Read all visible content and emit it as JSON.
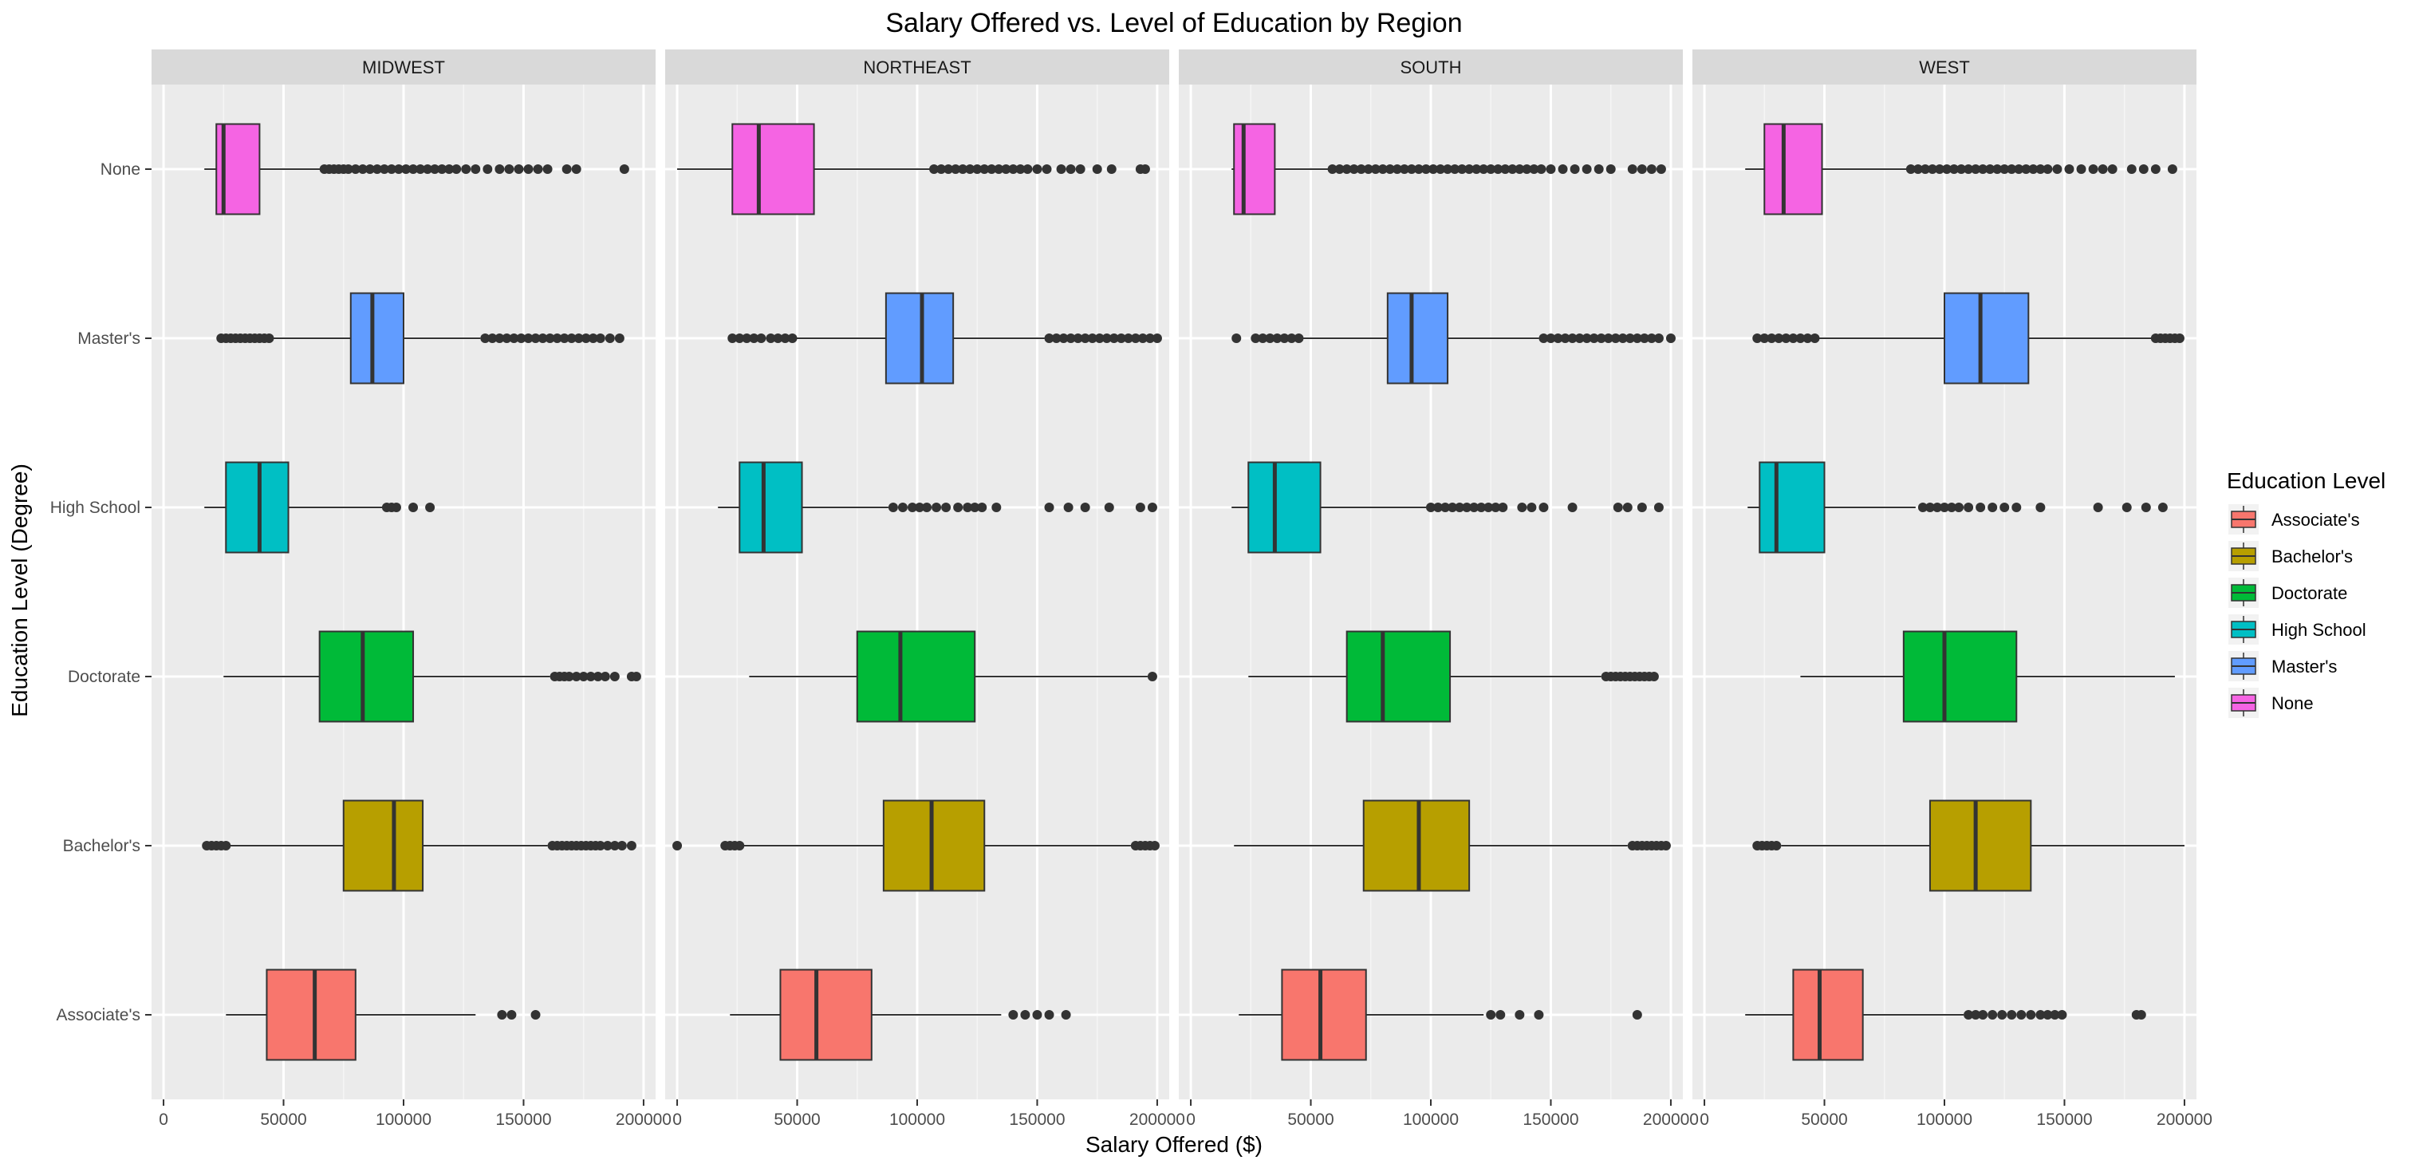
{
  "chart_data": {
    "type": "boxplot",
    "orientation": "horizontal",
    "title": "Salary Offered vs. Level of Education by Region",
    "xlabel": "Salary Offered ($)",
    "ylabel": "Education Level (Degree)",
    "xlim": [
      -5000,
      205000
    ],
    "x_ticks": [
      0,
      50000,
      100000,
      150000,
      200000
    ],
    "x_tick_labels": [
      "0",
      "50000",
      "100000",
      "150000",
      "200000"
    ],
    "categories": [
      "None",
      "Master's",
      "High School",
      "Doctorate",
      "Bachelor's",
      "Associate's"
    ],
    "legend": {
      "title": "Education Level",
      "position": "right",
      "entries": [
        "Associate's",
        "Bachelor's",
        "Doctorate",
        "High School",
        "Master's",
        "None"
      ]
    },
    "colors": {
      "Associate's": "#F8766D",
      "Bachelor's": "#B79F00",
      "Doctorate": "#00BA38",
      "High School": "#00BFC4",
      "Master's": "#619CFF",
      "None": "#F564E3"
    },
    "grid": true,
    "panels": [
      {
        "facet": "MIDWEST",
        "boxes": [
          {
            "category": "None",
            "whisker_low": 17000,
            "q1": 22000,
            "median": 25000,
            "q3": 40000,
            "whisker_high": 66000,
            "outliers": [
              67000,
              69000,
              71000,
              73000,
              75000,
              77000,
              80000,
              83000,
              86000,
              89000,
              92000,
              95000,
              98000,
              101000,
              104000,
              107000,
              110000,
              113000,
              116000,
              119000,
              122000,
              126000,
              130000,
              135000,
              140000,
              144000,
              148000,
              152000,
              156000,
              160000,
              168000,
              172000,
              192000
            ]
          },
          {
            "category": "Master's",
            "whisker_low": 25000,
            "q1": 78000,
            "median": 87000,
            "q3": 100000,
            "whisker_high": 132000,
            "outliers": [
              24000,
              26000,
              28000,
              30000,
              32000,
              34000,
              36000,
              38000,
              40000,
              42000,
              44000,
              134000,
              137000,
              140000,
              143000,
              146000,
              149000,
              152000,
              155000,
              158000,
              161000,
              164000,
              167000,
              170000,
              173000,
              176000,
              179000,
              182000,
              186000,
              190000
            ]
          },
          {
            "category": "High School",
            "whisker_low": 17000,
            "q1": 26000,
            "median": 40000,
            "q3": 52000,
            "whisker_high": 92000,
            "outliers": [
              93000,
              95000,
              97000,
              104000,
              111000
            ]
          },
          {
            "category": "Doctorate",
            "whisker_low": 25000,
            "q1": 65000,
            "median": 83000,
            "q3": 104000,
            "whisker_high": 161000,
            "outliers": [
              163000,
              165000,
              167000,
              169000,
              172000,
              175000,
              178000,
              181000,
              184000,
              188000,
              195000,
              197000
            ]
          },
          {
            "category": "Bachelor's",
            "whisker_low": 25000,
            "q1": 75000,
            "median": 96000,
            "q3": 108000,
            "whisker_high": 160000,
            "outliers": [
              18000,
              20000,
              22000,
              24000,
              26000,
              162000,
              164000,
              166000,
              168000,
              170000,
              172000,
              174000,
              176000,
              178000,
              180000,
              182000,
              185000,
              188000,
              191000,
              195000
            ]
          },
          {
            "category": "Associate's",
            "whisker_low": 26000,
            "q1": 43000,
            "median": 63000,
            "q3": 80000,
            "whisker_high": 130000,
            "outliers": [
              141000,
              145000,
              155000
            ]
          }
        ]
      },
      {
        "facet": "NORTHEAST",
        "boxes": [
          {
            "category": "None",
            "whisker_low": 0,
            "q1": 23000,
            "median": 34000,
            "q3": 57000,
            "whisker_high": 106000,
            "outliers": [
              107000,
              110000,
              113000,
              116000,
              119000,
              122000,
              125000,
              128000,
              131000,
              134000,
              137000,
              140000,
              143000,
              146000,
              150000,
              154000,
              160000,
              164000,
              168000,
              175000,
              181000,
              193000,
              195000
            ]
          },
          {
            "category": "Master's",
            "whisker_low": 37000,
            "q1": 87000,
            "median": 102000,
            "q3": 115000,
            "whisker_high": 153000,
            "outliers": [
              23000,
              26000,
              29000,
              32000,
              35000,
              39000,
              42000,
              45000,
              48000,
              155000,
              158000,
              161000,
              164000,
              167000,
              170000,
              173000,
              176000,
              179000,
              182000,
              185000,
              188000,
              191000,
              194000,
              197000,
              200000
            ]
          },
          {
            "category": "High School",
            "whisker_low": 17000,
            "q1": 26000,
            "median": 36000,
            "q3": 52000,
            "whisker_high": 88000,
            "outliers": [
              90000,
              94000,
              98000,
              101000,
              104000,
              108000,
              112000,
              117000,
              121000,
              124000,
              127000,
              133000,
              155000,
              163000,
              170000,
              180000,
              193000,
              198000
            ]
          },
          {
            "category": "Doctorate",
            "whisker_low": 30000,
            "q1": 75000,
            "median": 93000,
            "q3": 124000,
            "whisker_high": 196000,
            "outliers": [
              198000
            ]
          },
          {
            "category": "Bachelor's",
            "whisker_low": 25000,
            "q1": 86000,
            "median": 106000,
            "q3": 128000,
            "whisker_high": 189000,
            "outliers": [
              0,
              20000,
              22000,
              24000,
              26000,
              191000,
              193000,
              195000,
              197000,
              199000
            ]
          },
          {
            "category": "Associate's",
            "whisker_low": 22000,
            "q1": 43000,
            "median": 58000,
            "q3": 81000,
            "whisker_high": 135000,
            "outliers": [
              140000,
              145000,
              150000,
              155000,
              162000
            ]
          }
        ]
      },
      {
        "facet": "SOUTH",
        "boxes": [
          {
            "category": "None",
            "whisker_low": 17000,
            "q1": 18000,
            "median": 22000,
            "q3": 35000,
            "whisker_high": 58000,
            "outliers": [
              59000,
              62000,
              65000,
              68000,
              71000,
              74000,
              77000,
              80000,
              83000,
              86000,
              89000,
              92000,
              95000,
              98000,
              101000,
              104000,
              107000,
              110000,
              113000,
              116000,
              119000,
              122000,
              125000,
              128000,
              131000,
              134000,
              137000,
              140000,
              143000,
              146000,
              150000,
              155000,
              160000,
              165000,
              170000,
              175000,
              184000,
              188000,
              192000,
              196000
            ]
          },
          {
            "category": "Master's",
            "whisker_low": 40000,
            "q1": 82000,
            "median": 92000,
            "q3": 107000,
            "whisker_high": 145000,
            "outliers": [
              19000,
              27000,
              30000,
              33000,
              36000,
              39000,
              42000,
              45000,
              147000,
              150000,
              153000,
              156000,
              159000,
              162000,
              165000,
              168000,
              171000,
              174000,
              177000,
              180000,
              183000,
              186000,
              189000,
              192000,
              195000,
              200000
            ]
          },
          {
            "category": "High School",
            "whisker_low": 17000,
            "q1": 24000,
            "median": 35000,
            "q3": 54000,
            "whisker_high": 98000,
            "outliers": [
              100000,
              103000,
              106000,
              109000,
              112000,
              115000,
              118000,
              121000,
              124000,
              127000,
              130000,
              138000,
              142000,
              147000,
              159000,
              178000,
              182000,
              188000,
              195000
            ]
          },
          {
            "category": "Doctorate",
            "whisker_low": 24000,
            "q1": 65000,
            "median": 80000,
            "q3": 108000,
            "whisker_high": 171000,
            "outliers": [
              173000,
              175000,
              177000,
              179000,
              181000,
              183000,
              185000,
              187000,
              189000,
              191000,
              193000
            ]
          },
          {
            "category": "Bachelor's",
            "whisker_low": 18000,
            "q1": 72000,
            "median": 95000,
            "q3": 116000,
            "whisker_high": 182000,
            "outliers": [
              184000,
              186000,
              188000,
              190000,
              192000,
              194000,
              196000,
              198000
            ]
          },
          {
            "category": "Associate's",
            "whisker_low": 20000,
            "q1": 38000,
            "median": 54000,
            "q3": 73000,
            "whisker_high": 122000,
            "outliers": [
              125000,
              129000,
              137000,
              145000,
              186000
            ]
          }
        ]
      },
      {
        "facet": "WEST",
        "boxes": [
          {
            "category": "None",
            "whisker_low": 17000,
            "q1": 25000,
            "median": 33000,
            "q3": 49000,
            "whisker_high": 85000,
            "outliers": [
              86000,
              89000,
              92000,
              95000,
              98000,
              101000,
              104000,
              107000,
              110000,
              113000,
              116000,
              119000,
              122000,
              125000,
              128000,
              131000,
              134000,
              137000,
              140000,
              143000,
              147000,
              152000,
              157000,
              162000,
              166000,
              170000,
              178000,
              183000,
              188000,
              195000
            ]
          },
          {
            "category": "Master's",
            "whisker_low": 45000,
            "q1": 100000,
            "median": 115000,
            "q3": 135000,
            "whisker_high": 187000,
            "outliers": [
              22000,
              25000,
              28000,
              31000,
              34000,
              37000,
              40000,
              43000,
              46000,
              188000,
              190000,
              192000,
              194000,
              196000,
              198000
            ]
          },
          {
            "category": "High School",
            "whisker_low": 18000,
            "q1": 23000,
            "median": 30000,
            "q3": 50000,
            "whisker_high": 88000,
            "outliers": [
              91000,
              94000,
              97000,
              100000,
              103000,
              106000,
              110000,
              115000,
              120000,
              125000,
              130000,
              140000,
              164000,
              176000,
              184000,
              191000
            ]
          },
          {
            "category": "Doctorate",
            "whisker_low": 40000,
            "q1": 83000,
            "median": 100000,
            "q3": 130000,
            "whisker_high": 196000,
            "outliers": []
          },
          {
            "category": "Bachelor's",
            "whisker_low": 32000,
            "q1": 94000,
            "median": 113000,
            "q3": 136000,
            "whisker_high": 200000,
            "outliers": [
              22000,
              24000,
              26000,
              28000,
              30000
            ]
          },
          {
            "category": "Associate's",
            "whisker_low": 17000,
            "q1": 37000,
            "median": 48000,
            "q3": 66000,
            "whisker_high": 108000,
            "outliers": [
              110000,
              113000,
              116000,
              120000,
              124000,
              128000,
              132000,
              136000,
              140000,
              143000,
              146000,
              149000,
              180000,
              182000
            ]
          }
        ]
      }
    ]
  }
}
